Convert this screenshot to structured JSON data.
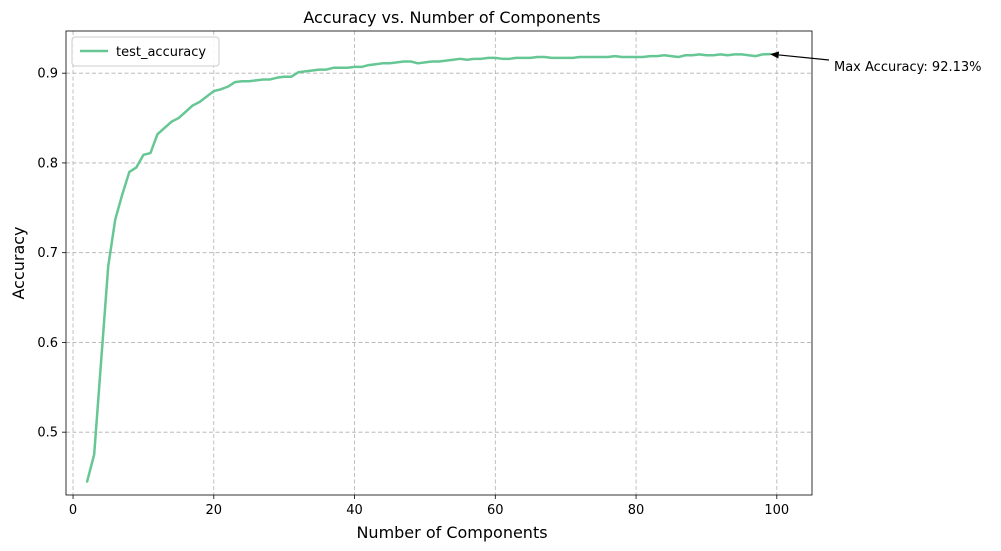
{
  "chart_data": {
    "type": "line",
    "title": "Accuracy vs. Number of Components",
    "xlabel": "Number of Components",
    "ylabel": "Accuracy",
    "xlim": [
      -1,
      105
    ],
    "ylim": [
      0.43,
      0.947
    ],
    "xticks": [
      0,
      20,
      40,
      60,
      80,
      100
    ],
    "yticks": [
      0.5,
      0.6,
      0.7,
      0.8,
      0.9
    ],
    "grid": true,
    "legend_position": "top-left",
    "series": [
      {
        "name": "test_accuracy",
        "color": "#66c794",
        "x": [
          2,
          3,
          4,
          5,
          6,
          7,
          8,
          9,
          10,
          11,
          12,
          13,
          14,
          15,
          16,
          17,
          18,
          19,
          20,
          21,
          22,
          23,
          24,
          25,
          26,
          27,
          28,
          29,
          30,
          31,
          32,
          33,
          34,
          35,
          36,
          37,
          38,
          39,
          40,
          41,
          42,
          43,
          44,
          45,
          46,
          47,
          48,
          49,
          50,
          51,
          52,
          53,
          54,
          55,
          56,
          57,
          58,
          59,
          60,
          61,
          62,
          63,
          64,
          65,
          66,
          67,
          68,
          69,
          70,
          71,
          72,
          73,
          74,
          75,
          76,
          77,
          78,
          79,
          80,
          81,
          82,
          83,
          84,
          85,
          86,
          87,
          88,
          89,
          90,
          91,
          92,
          93,
          94,
          95,
          96,
          97,
          98,
          99
        ],
        "y": [
          0.445,
          0.475,
          0.58,
          0.685,
          0.737,
          0.765,
          0.79,
          0.795,
          0.809,
          0.811,
          0.832,
          0.839,
          0.846,
          0.85,
          0.857,
          0.864,
          0.868,
          0.874,
          0.88,
          0.882,
          0.885,
          0.89,
          0.891,
          0.891,
          0.892,
          0.893,
          0.893,
          0.895,
          0.896,
          0.896,
          0.901,
          0.902,
          0.903,
          0.904,
          0.904,
          0.906,
          0.906,
          0.906,
          0.907,
          0.907,
          0.909,
          0.91,
          0.911,
          0.911,
          0.912,
          0.913,
          0.913,
          0.911,
          0.912,
          0.913,
          0.913,
          0.914,
          0.915,
          0.916,
          0.915,
          0.916,
          0.916,
          0.917,
          0.917,
          0.916,
          0.916,
          0.917,
          0.917,
          0.917,
          0.918,
          0.918,
          0.917,
          0.917,
          0.917,
          0.917,
          0.918,
          0.918,
          0.918,
          0.918,
          0.918,
          0.919,
          0.918,
          0.918,
          0.918,
          0.918,
          0.919,
          0.919,
          0.92,
          0.919,
          0.918,
          0.92,
          0.92,
          0.921,
          0.92,
          0.92,
          0.921,
          0.92,
          0.921,
          0.921,
          0.92,
          0.919,
          0.921,
          0.9213
        ]
      }
    ],
    "annotation": {
      "text": "Max Accuracy: 92.13%",
      "x": 99,
      "y": 0.9213
    }
  }
}
